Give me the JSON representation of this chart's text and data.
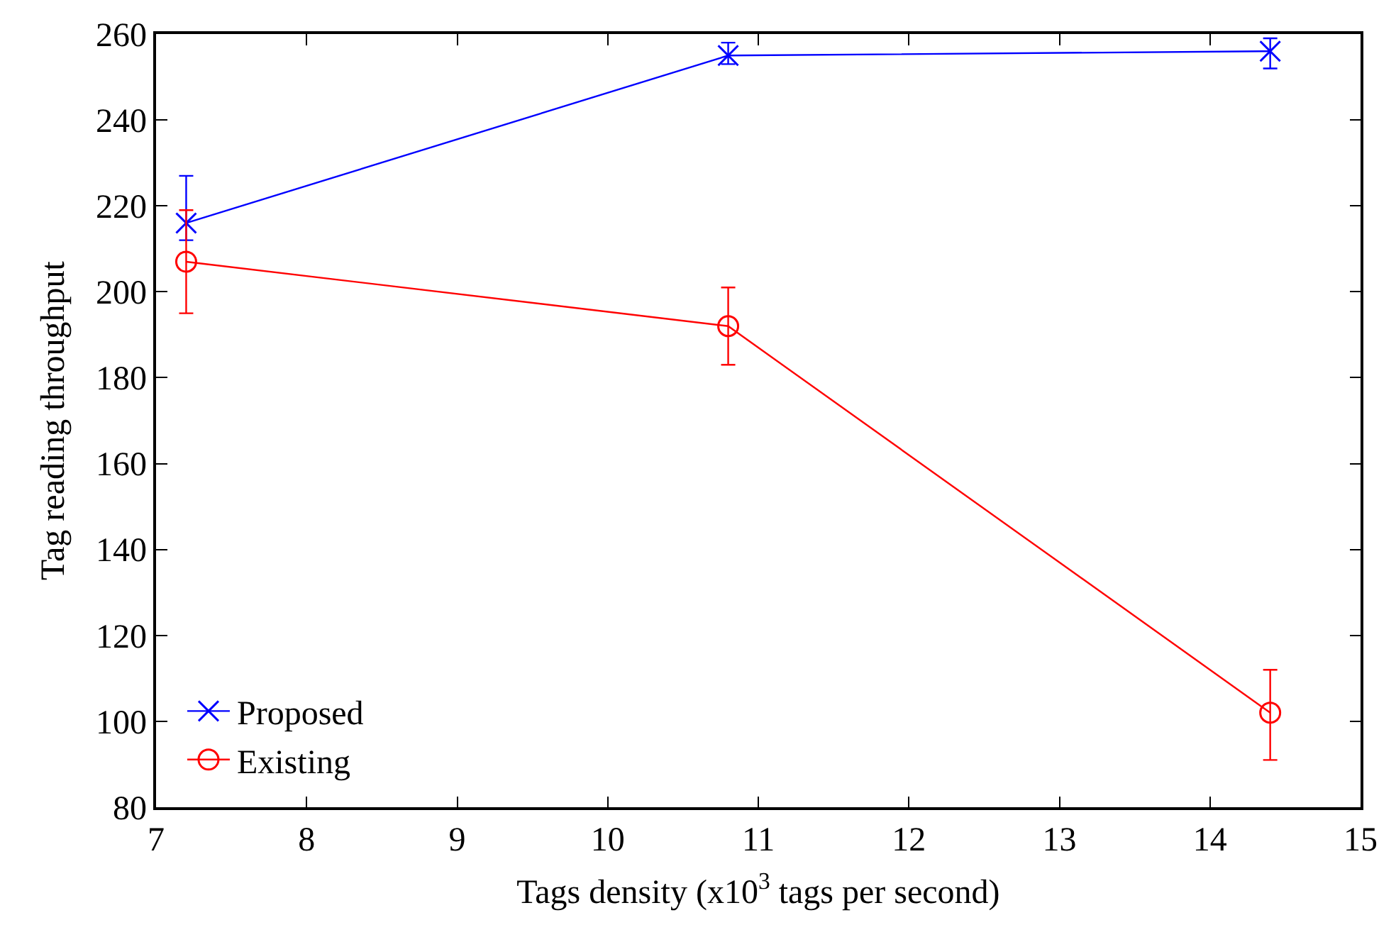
{
  "chart_data": {
    "type": "line",
    "xlabel": "Tags density (x10$^{3}$ tags per second)",
    "ylabel": "Tag reading throughput",
    "x": [
      7.2,
      10.8,
      14.4
    ],
    "series": [
      {
        "name": "Proposed",
        "color": "#0000ff",
        "marker": "cross",
        "values": [
          216,
          255,
          256
        ],
        "errors": [
          [
            212,
            227
          ],
          [
            253,
            258
          ],
          [
            252,
            259
          ]
        ]
      },
      {
        "name": "Existing",
        "color": "#ff0000",
        "marker": "circle",
        "values": [
          207,
          192,
          102
        ],
        "errors": [
          [
            195,
            219
          ],
          [
            183,
            201
          ],
          [
            91,
            112
          ]
        ]
      }
    ],
    "xlim": [
      7,
      15
    ],
    "xticks": [
      7,
      8,
      9,
      10,
      11,
      12,
      13,
      14,
      15
    ],
    "ylim": [
      80,
      260
    ],
    "yticks": [
      80,
      100,
      120,
      140,
      160,
      180,
      200,
      220,
      240,
      260
    ],
    "legend": "bottom left",
    "line_style": "solid"
  }
}
